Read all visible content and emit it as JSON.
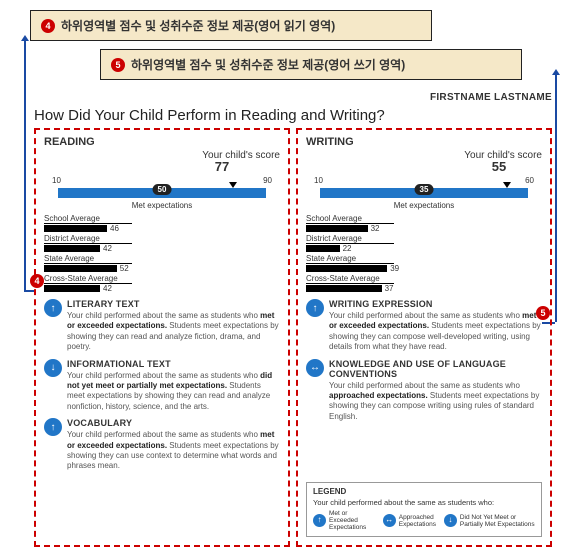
{
  "callouts": {
    "c1": {
      "num": "4",
      "text": "하위영역별 점수 및 성취수준 정보 제공(영어 읽기 영역)"
    },
    "c2": {
      "num": "5",
      "text": "하위영역별 점수 및 성취수준 정보 제공(영어 쓰기 영역)"
    }
  },
  "student_name": "FIRSTNAME LASTNAME",
  "main_title": "How Did Your Child Perform in Reading and Writing?",
  "reading": {
    "title": "READING",
    "score_label": "Your child's score",
    "score": "77",
    "min": "10",
    "mid": "50",
    "max": "90",
    "score_pct": 84,
    "met_label": "Met expectations",
    "averages": [
      {
        "label": "School Average",
        "val": "46",
        "pct": 45
      },
      {
        "label": "District Average",
        "val": "42",
        "pct": 40
      },
      {
        "label": "State Average",
        "val": "52",
        "pct": 52
      },
      {
        "label": "Cross-State Average",
        "val": "42",
        "pct": 40
      }
    ],
    "subs": [
      {
        "icon": "↑",
        "title": "LITERARY TEXT",
        "text": "Your child performed about the same as students who <b>met or exceeded expectations.</b> Students meet expectations by showing they can read and analyze fiction, drama, and poetry."
      },
      {
        "icon": "↓",
        "title": "INFORMATIONAL TEXT",
        "text": "Your child performed about the same as students who <b>did not yet meet or partially met expectations.</b> Students meet expectations by showing they can read and analyze nonfiction, history, science, and the arts."
      },
      {
        "icon": "↑",
        "title": "VOCABULARY",
        "text": "Your child performed about the same as students who <b>met or exceeded expectations.</b> Students meet expectations by showing they can use context to determine what words and phrases mean."
      }
    ]
  },
  "writing": {
    "title": "WRITING",
    "score_label": "Your child's score",
    "score": "55",
    "min": "10",
    "mid": "35",
    "max": "60",
    "score_pct": 90,
    "met_label": "Met expectations",
    "averages": [
      {
        "label": "School Average",
        "val": "32",
        "pct": 44
      },
      {
        "label": "District Average",
        "val": "22",
        "pct": 24
      },
      {
        "label": "State Average",
        "val": "39",
        "pct": 58
      },
      {
        "label": "Cross-State Average",
        "val": "37",
        "pct": 54
      }
    ],
    "subs": [
      {
        "icon": "↑",
        "title": "WRITING EXPRESSION",
        "text": "Your child performed about the same as students who <b>met or exceeded expectations.</b> Students meet expectations by showing they can compose well-developed writing, using details from what they have read."
      },
      {
        "icon": "↔",
        "title": "KNOWLEDGE AND USE OF LANGUAGE CONVENTIONS",
        "text": "Your child performed about the same as students who <b>approached expectations.</b> Students meet expectations by showing they can compose writing using rules of standard English."
      }
    ]
  },
  "legend": {
    "title": "LEGEND",
    "intro": "Your child performed about the same as students who:",
    "items": [
      {
        "icon": "↑",
        "text": "Met or Exceeded Expectations"
      },
      {
        "icon": "↔",
        "text": "Approached Expectations"
      },
      {
        "icon": "↓",
        "text": "Did Not Yet Meet or Partially Met Expectations"
      }
    ]
  },
  "badges": {
    "b4": "4",
    "b5": "5"
  }
}
